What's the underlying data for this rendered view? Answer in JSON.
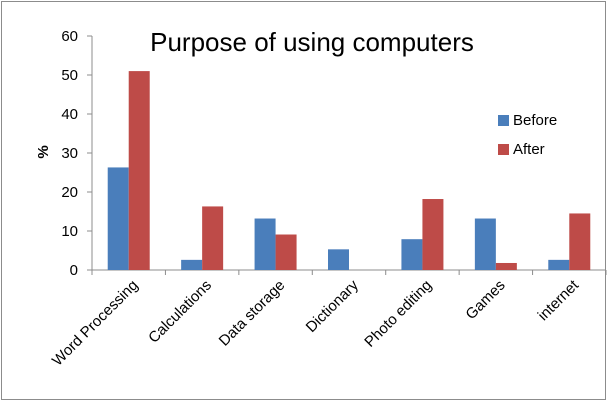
{
  "chart_data": {
    "type": "bar",
    "title": "Purpose of using computers",
    "xlabel": "",
    "ylabel": "%",
    "ylim": [
      0,
      60
    ],
    "yticks": [
      0,
      10,
      20,
      30,
      40,
      50,
      60
    ],
    "grid": false,
    "legend_position": "right",
    "categories": [
      "Word Processing",
      "Calculations",
      "Data storage",
      "Dictionary",
      "Photo editing",
      "Games",
      "internet"
    ],
    "series": [
      {
        "name": "Before",
        "color": "#4a7ebb",
        "values": [
          26.3,
          2.6,
          13.2,
          5.3,
          7.9,
          13.2,
          2.6
        ]
      },
      {
        "name": "After",
        "color": "#be4b48",
        "values": [
          51.0,
          16.3,
          9.1,
          0,
          18.2,
          1.8,
          14.5
        ]
      }
    ]
  }
}
